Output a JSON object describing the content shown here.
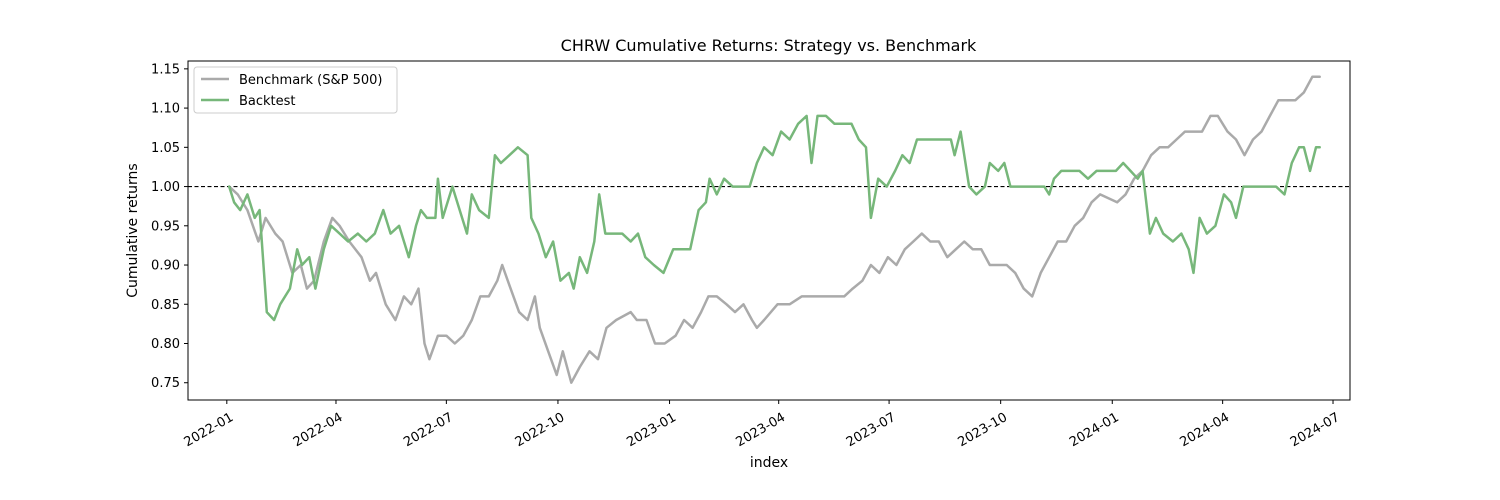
{
  "chart_data": {
    "type": "line",
    "title": "CHRW Cumulative Returns: Strategy vs. Benchmark",
    "xlabel": "index",
    "ylabel": "Cumulative returns",
    "xlim": [
      "2021-11-30",
      "2024-07-15"
    ],
    "ylim": [
      0.728,
      1.16
    ],
    "x_ticks": [
      "2022-01",
      "2022-04",
      "2022-07",
      "2022-10",
      "2023-01",
      "2023-04",
      "2023-07",
      "2023-10",
      "2024-01",
      "2024-04",
      "2024-07"
    ],
    "y_ticks": [
      "0.75",
      "0.80",
      "0.85",
      "0.90",
      "0.95",
      "1.00",
      "1.05",
      "1.10",
      "1.15"
    ],
    "reference_line": {
      "y": 1.0,
      "style": "dashed",
      "color": "#000000"
    },
    "legend_position": "top-left",
    "series": [
      {
        "name": "Benchmark (S&P 500)",
        "color": "#aaaaaa",
        "points": [
          [
            "2022-01-03",
            1.0
          ],
          [
            "2022-01-10",
            0.99
          ],
          [
            "2022-01-18",
            0.97
          ],
          [
            "2022-01-27",
            0.93
          ],
          [
            "2022-02-02",
            0.96
          ],
          [
            "2022-02-10",
            0.94
          ],
          [
            "2022-02-16",
            0.93
          ],
          [
            "2022-02-24",
            0.89
          ],
          [
            "2022-03-03",
            0.9
          ],
          [
            "2022-03-08",
            0.87
          ],
          [
            "2022-03-14",
            0.88
          ],
          [
            "2022-03-22",
            0.93
          ],
          [
            "2022-03-29",
            0.96
          ],
          [
            "2022-04-04",
            0.95
          ],
          [
            "2022-04-12",
            0.93
          ],
          [
            "2022-04-22",
            0.91
          ],
          [
            "2022-04-29",
            0.88
          ],
          [
            "2022-05-04",
            0.89
          ],
          [
            "2022-05-12",
            0.85
          ],
          [
            "2022-05-20",
            0.83
          ],
          [
            "2022-05-27",
            0.86
          ],
          [
            "2022-06-02",
            0.85
          ],
          [
            "2022-06-08",
            0.87
          ],
          [
            "2022-06-13",
            0.8
          ],
          [
            "2022-06-17",
            0.78
          ],
          [
            "2022-06-24",
            0.81
          ],
          [
            "2022-07-01",
            0.81
          ],
          [
            "2022-07-08",
            0.8
          ],
          [
            "2022-07-15",
            0.81
          ],
          [
            "2022-07-22",
            0.83
          ],
          [
            "2022-07-29",
            0.86
          ],
          [
            "2022-08-05",
            0.86
          ],
          [
            "2022-08-12",
            0.88
          ],
          [
            "2022-08-16",
            0.9
          ],
          [
            "2022-08-23",
            0.87
          ],
          [
            "2022-08-30",
            0.84
          ],
          [
            "2022-09-06",
            0.83
          ],
          [
            "2022-09-12",
            0.86
          ],
          [
            "2022-09-16",
            0.82
          ],
          [
            "2022-09-23",
            0.79
          ],
          [
            "2022-09-30",
            0.76
          ],
          [
            "2022-10-05",
            0.79
          ],
          [
            "2022-10-12",
            0.75
          ],
          [
            "2022-10-19",
            0.77
          ],
          [
            "2022-10-27",
            0.79
          ],
          [
            "2022-11-03",
            0.78
          ],
          [
            "2022-11-10",
            0.82
          ],
          [
            "2022-11-18",
            0.83
          ],
          [
            "2022-11-30",
            0.84
          ],
          [
            "2022-12-05",
            0.83
          ],
          [
            "2022-12-13",
            0.83
          ],
          [
            "2022-12-20",
            0.8
          ],
          [
            "2022-12-28",
            0.8
          ],
          [
            "2023-01-06",
            0.81
          ],
          [
            "2023-01-13",
            0.83
          ],
          [
            "2023-01-20",
            0.82
          ],
          [
            "2023-01-27",
            0.84
          ],
          [
            "2023-02-02",
            0.86
          ],
          [
            "2023-02-09",
            0.86
          ],
          [
            "2023-02-17",
            0.85
          ],
          [
            "2023-02-24",
            0.84
          ],
          [
            "2023-03-03",
            0.85
          ],
          [
            "2023-03-10",
            0.83
          ],
          [
            "2023-03-14",
            0.82
          ],
          [
            "2023-03-20",
            0.83
          ],
          [
            "2023-03-31",
            0.85
          ],
          [
            "2023-04-10",
            0.85
          ],
          [
            "2023-04-20",
            0.86
          ],
          [
            "2023-04-28",
            0.86
          ],
          [
            "2023-05-05",
            0.86
          ],
          [
            "2023-05-15",
            0.86
          ],
          [
            "2023-05-25",
            0.86
          ],
          [
            "2023-06-01",
            0.87
          ],
          [
            "2023-06-09",
            0.88
          ],
          [
            "2023-06-16",
            0.9
          ],
          [
            "2023-06-23",
            0.89
          ],
          [
            "2023-06-30",
            0.91
          ],
          [
            "2023-07-07",
            0.9
          ],
          [
            "2023-07-14",
            0.92
          ],
          [
            "2023-07-21",
            0.93
          ],
          [
            "2023-07-28",
            0.94
          ],
          [
            "2023-08-04",
            0.93
          ],
          [
            "2023-08-11",
            0.93
          ],
          [
            "2023-08-18",
            0.91
          ],
          [
            "2023-08-25",
            0.92
          ],
          [
            "2023-09-01",
            0.93
          ],
          [
            "2023-09-08",
            0.92
          ],
          [
            "2023-09-15",
            0.92
          ],
          [
            "2023-09-22",
            0.9
          ],
          [
            "2023-09-29",
            0.9
          ],
          [
            "2023-10-06",
            0.9
          ],
          [
            "2023-10-13",
            0.89
          ],
          [
            "2023-10-20",
            0.87
          ],
          [
            "2023-10-27",
            0.86
          ],
          [
            "2023-11-03",
            0.89
          ],
          [
            "2023-11-10",
            0.91
          ],
          [
            "2023-11-17",
            0.93
          ],
          [
            "2023-11-24",
            0.93
          ],
          [
            "2023-12-01",
            0.95
          ],
          [
            "2023-12-08",
            0.96
          ],
          [
            "2023-12-15",
            0.98
          ],
          [
            "2023-12-22",
            0.99
          ],
          [
            "2024-01-05",
            0.98
          ],
          [
            "2024-01-12",
            0.99
          ],
          [
            "2024-01-19",
            1.01
          ],
          [
            "2024-01-26",
            1.02
          ],
          [
            "2024-02-02",
            1.04
          ],
          [
            "2024-02-09",
            1.05
          ],
          [
            "2024-02-16",
            1.05
          ],
          [
            "2024-02-23",
            1.06
          ],
          [
            "2024-03-01",
            1.07
          ],
          [
            "2024-03-08",
            1.07
          ],
          [
            "2024-03-15",
            1.07
          ],
          [
            "2024-03-22",
            1.09
          ],
          [
            "2024-03-28",
            1.09
          ],
          [
            "2024-04-05",
            1.07
          ],
          [
            "2024-04-12",
            1.06
          ],
          [
            "2024-04-19",
            1.04
          ],
          [
            "2024-04-26",
            1.06
          ],
          [
            "2024-05-03",
            1.07
          ],
          [
            "2024-05-10",
            1.09
          ],
          [
            "2024-05-17",
            1.11
          ],
          [
            "2024-05-24",
            1.11
          ],
          [
            "2024-05-31",
            1.11
          ],
          [
            "2024-06-07",
            1.12
          ],
          [
            "2024-06-14",
            1.14
          ],
          [
            "2024-06-20",
            1.14
          ]
        ]
      },
      {
        "name": "Backtest",
        "color": "#77b77a",
        "points": [
          [
            "2022-01-03",
            1.0
          ],
          [
            "2022-01-07",
            0.98
          ],
          [
            "2022-01-12",
            0.97
          ],
          [
            "2022-01-18",
            0.99
          ],
          [
            "2022-01-24",
            0.96
          ],
          [
            "2022-01-28",
            0.97
          ],
          [
            "2022-02-03",
            0.84
          ],
          [
            "2022-02-09",
            0.83
          ],
          [
            "2022-02-14",
            0.85
          ],
          [
            "2022-02-22",
            0.87
          ],
          [
            "2022-02-28",
            0.92
          ],
          [
            "2022-03-04",
            0.9
          ],
          [
            "2022-03-10",
            0.91
          ],
          [
            "2022-03-15",
            0.87
          ],
          [
            "2022-03-22",
            0.92
          ],
          [
            "2022-03-28",
            0.95
          ],
          [
            "2022-04-04",
            0.94
          ],
          [
            "2022-04-11",
            0.93
          ],
          [
            "2022-04-19",
            0.94
          ],
          [
            "2022-04-26",
            0.93
          ],
          [
            "2022-05-03",
            0.94
          ],
          [
            "2022-05-10",
            0.97
          ],
          [
            "2022-05-16",
            0.94
          ],
          [
            "2022-05-23",
            0.95
          ],
          [
            "2022-05-31",
            0.91
          ],
          [
            "2022-06-06",
            0.95
          ],
          [
            "2022-06-10",
            0.97
          ],
          [
            "2022-06-15",
            0.96
          ],
          [
            "2022-06-22",
            0.96
          ],
          [
            "2022-06-24",
            1.01
          ],
          [
            "2022-06-28",
            0.96
          ],
          [
            "2022-07-06",
            1.0
          ],
          [
            "2022-07-12",
            0.97
          ],
          [
            "2022-07-18",
            0.94
          ],
          [
            "2022-07-22",
            0.99
          ],
          [
            "2022-07-28",
            0.97
          ],
          [
            "2022-08-05",
            0.96
          ],
          [
            "2022-08-10",
            1.04
          ],
          [
            "2022-08-15",
            1.03
          ],
          [
            "2022-08-22",
            1.04
          ],
          [
            "2022-08-29",
            1.05
          ],
          [
            "2022-09-06",
            1.04
          ],
          [
            "2022-09-09",
            0.96
          ],
          [
            "2022-09-15",
            0.94
          ],
          [
            "2022-09-21",
            0.91
          ],
          [
            "2022-09-27",
            0.93
          ],
          [
            "2022-10-03",
            0.88
          ],
          [
            "2022-10-10",
            0.89
          ],
          [
            "2022-10-14",
            0.87
          ],
          [
            "2022-10-19",
            0.91
          ],
          [
            "2022-10-25",
            0.89
          ],
          [
            "2022-10-31",
            0.93
          ],
          [
            "2022-11-04",
            0.99
          ],
          [
            "2022-11-09",
            0.94
          ],
          [
            "2022-11-16",
            0.94
          ],
          [
            "2022-11-23",
            0.94
          ],
          [
            "2022-11-30",
            0.93
          ],
          [
            "2022-12-06",
            0.94
          ],
          [
            "2022-12-12",
            0.91
          ],
          [
            "2022-12-19",
            0.9
          ],
          [
            "2022-12-27",
            0.89
          ],
          [
            "2023-01-04",
            0.92
          ],
          [
            "2023-01-11",
            0.92
          ],
          [
            "2023-01-18",
            0.92
          ],
          [
            "2023-01-25",
            0.97
          ],
          [
            "2023-01-31",
            0.98
          ],
          [
            "2023-02-03",
            1.01
          ],
          [
            "2023-02-09",
            0.99
          ],
          [
            "2023-02-15",
            1.01
          ],
          [
            "2023-02-22",
            1.0
          ],
          [
            "2023-03-01",
            1.0
          ],
          [
            "2023-03-08",
            1.0
          ],
          [
            "2023-03-14",
            1.03
          ],
          [
            "2023-03-20",
            1.05
          ],
          [
            "2023-03-27",
            1.04
          ],
          [
            "2023-04-03",
            1.07
          ],
          [
            "2023-04-10",
            1.06
          ],
          [
            "2023-04-17",
            1.08
          ],
          [
            "2023-04-24",
            1.09
          ],
          [
            "2023-04-28",
            1.03
          ],
          [
            "2023-05-03",
            1.09
          ],
          [
            "2023-05-10",
            1.09
          ],
          [
            "2023-05-17",
            1.08
          ],
          [
            "2023-05-24",
            1.08
          ],
          [
            "2023-05-31",
            1.08
          ],
          [
            "2023-06-06",
            1.06
          ],
          [
            "2023-06-12",
            1.05
          ],
          [
            "2023-06-16",
            0.96
          ],
          [
            "2023-06-22",
            1.01
          ],
          [
            "2023-06-29",
            1.0
          ],
          [
            "2023-07-06",
            1.02
          ],
          [
            "2023-07-12",
            1.04
          ],
          [
            "2023-07-18",
            1.03
          ],
          [
            "2023-07-24",
            1.06
          ],
          [
            "2023-07-31",
            1.06
          ],
          [
            "2023-08-07",
            1.06
          ],
          [
            "2023-08-14",
            1.06
          ],
          [
            "2023-08-21",
            1.06
          ],
          [
            "2023-08-24",
            1.04
          ],
          [
            "2023-08-29",
            1.07
          ],
          [
            "2023-09-05",
            1.0
          ],
          [
            "2023-09-11",
            0.99
          ],
          [
            "2023-09-18",
            1.0
          ],
          [
            "2023-09-22",
            1.03
          ],
          [
            "2023-09-29",
            1.02
          ],
          [
            "2023-10-04",
            1.03
          ],
          [
            "2023-10-09",
            1.0
          ],
          [
            "2023-10-16",
            1.0
          ],
          [
            "2023-10-23",
            1.0
          ],
          [
            "2023-10-30",
            1.0
          ],
          [
            "2023-11-06",
            1.0
          ],
          [
            "2023-11-10",
            0.99
          ],
          [
            "2023-11-14",
            1.01
          ],
          [
            "2023-11-20",
            1.02
          ],
          [
            "2023-11-28",
            1.02
          ],
          [
            "2023-12-05",
            1.02
          ],
          [
            "2023-12-12",
            1.01
          ],
          [
            "2023-12-19",
            1.02
          ],
          [
            "2023-12-27",
            1.02
          ],
          [
            "2024-01-04",
            1.02
          ],
          [
            "2024-01-10",
            1.03
          ],
          [
            "2024-01-16",
            1.02
          ],
          [
            "2024-01-22",
            1.01
          ],
          [
            "2024-01-26",
            1.02
          ],
          [
            "2024-02-01",
            0.94
          ],
          [
            "2024-02-06",
            0.96
          ],
          [
            "2024-02-12",
            0.94
          ],
          [
            "2024-02-20",
            0.93
          ],
          [
            "2024-02-27",
            0.94
          ],
          [
            "2024-03-04",
            0.92
          ],
          [
            "2024-03-08",
            0.89
          ],
          [
            "2024-03-13",
            0.96
          ],
          [
            "2024-03-19",
            0.94
          ],
          [
            "2024-03-26",
            0.95
          ],
          [
            "2024-04-02",
            0.99
          ],
          [
            "2024-04-08",
            0.98
          ],
          [
            "2024-04-12",
            0.96
          ],
          [
            "2024-04-18",
            1.0
          ],
          [
            "2024-04-24",
            1.0
          ],
          [
            "2024-05-01",
            1.0
          ],
          [
            "2024-05-08",
            1.0
          ],
          [
            "2024-05-15",
            1.0
          ],
          [
            "2024-05-22",
            0.99
          ],
          [
            "2024-05-28",
            1.03
          ],
          [
            "2024-06-03",
            1.05
          ],
          [
            "2024-06-07",
            1.05
          ],
          [
            "2024-06-12",
            1.02
          ],
          [
            "2024-06-17",
            1.05
          ],
          [
            "2024-06-20",
            1.05
          ]
        ]
      }
    ]
  }
}
